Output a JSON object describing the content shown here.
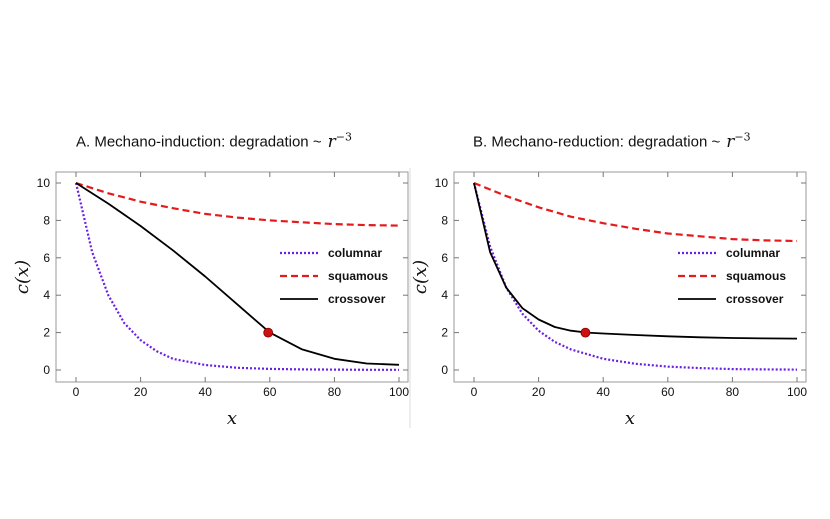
{
  "chart_data": [
    {
      "type": "line",
      "title_prefix": "A.  Mechano-induction:  degradation ~",
      "title_math": "r",
      "title_exp": "−3",
      "xlabel": "x",
      "ylabel": "c(x)",
      "xlim": [
        0,
        100
      ],
      "ylim": [
        0,
        10
      ],
      "xticks": [
        0,
        20,
        40,
        60,
        80,
        100
      ],
      "yticks": [
        0,
        2,
        4,
        6,
        8,
        10
      ],
      "legend": "center-right",
      "series": [
        {
          "name": "columnar",
          "color": "#6a1ee6",
          "dash": "dotted",
          "x": [
            0,
            5,
            10,
            15,
            20,
            25,
            30,
            40,
            50,
            60,
            70,
            80,
            90,
            100
          ],
          "y": [
            10,
            6.3,
            4.0,
            2.5,
            1.6,
            1.0,
            0.6,
            0.27,
            0.12,
            0.06,
            0.03,
            0.02,
            0.01,
            0.01
          ]
        },
        {
          "name": "squamous",
          "color": "#e41a1c",
          "dash": "dashed",
          "x": [
            0,
            10,
            20,
            30,
            40,
            50,
            60,
            70,
            80,
            90,
            100
          ],
          "y": [
            10,
            9.45,
            9.0,
            8.65,
            8.35,
            8.15,
            8.0,
            7.9,
            7.8,
            7.75,
            7.72
          ]
        },
        {
          "name": "crossover",
          "color": "#000000",
          "dash": "solid",
          "x": [
            0,
            10,
            20,
            30,
            40,
            50,
            60,
            70,
            80,
            90,
            100
          ],
          "y": [
            10,
            8.9,
            7.7,
            6.4,
            5.0,
            3.5,
            2.0,
            1.1,
            0.6,
            0.35,
            0.28
          ]
        }
      ],
      "marker": {
        "x": 59.5,
        "y": 2.0,
        "color": "#cc1111"
      }
    },
    {
      "type": "line",
      "title_prefix": "B.  Mechano-reduction:  degradation ~",
      "title_math": "r",
      "title_exp": "−3",
      "xlabel": "x",
      "ylabel": "c(x)",
      "xlim": [
        0,
        100
      ],
      "ylim": [
        0,
        10
      ],
      "xticks": [
        0,
        20,
        40,
        60,
        80,
        100
      ],
      "yticks": [
        0,
        2,
        4,
        6,
        8,
        10
      ],
      "legend": "center-right",
      "series": [
        {
          "name": "columnar",
          "color": "#6a1ee6",
          "dash": "dotted",
          "x": [
            0,
            5,
            10,
            15,
            20,
            25,
            30,
            40,
            50,
            60,
            70,
            80,
            90,
            100
          ],
          "y": [
            10,
            6.6,
            4.4,
            3.0,
            2.1,
            1.5,
            1.1,
            0.6,
            0.33,
            0.18,
            0.1,
            0.05,
            0.03,
            0.02
          ]
        },
        {
          "name": "squamous",
          "color": "#e41a1c",
          "dash": "dashed",
          "x": [
            0,
            10,
            20,
            30,
            40,
            50,
            60,
            70,
            80,
            90,
            100
          ],
          "y": [
            10,
            9.3,
            8.7,
            8.2,
            7.85,
            7.55,
            7.3,
            7.15,
            7.0,
            6.93,
            6.9
          ]
        },
        {
          "name": "crossover",
          "color": "#000000",
          "dash": "solid",
          "x": [
            0,
            5,
            10,
            15,
            20,
            25,
            30,
            35,
            40,
            50,
            60,
            70,
            80,
            90,
            100
          ],
          "y": [
            10,
            6.3,
            4.4,
            3.3,
            2.7,
            2.3,
            2.1,
            2.0,
            1.95,
            1.87,
            1.8,
            1.75,
            1.71,
            1.69,
            1.68
          ]
        }
      ],
      "marker": {
        "x": 34.5,
        "y": 2.0,
        "color": "#cc1111"
      }
    }
  ]
}
